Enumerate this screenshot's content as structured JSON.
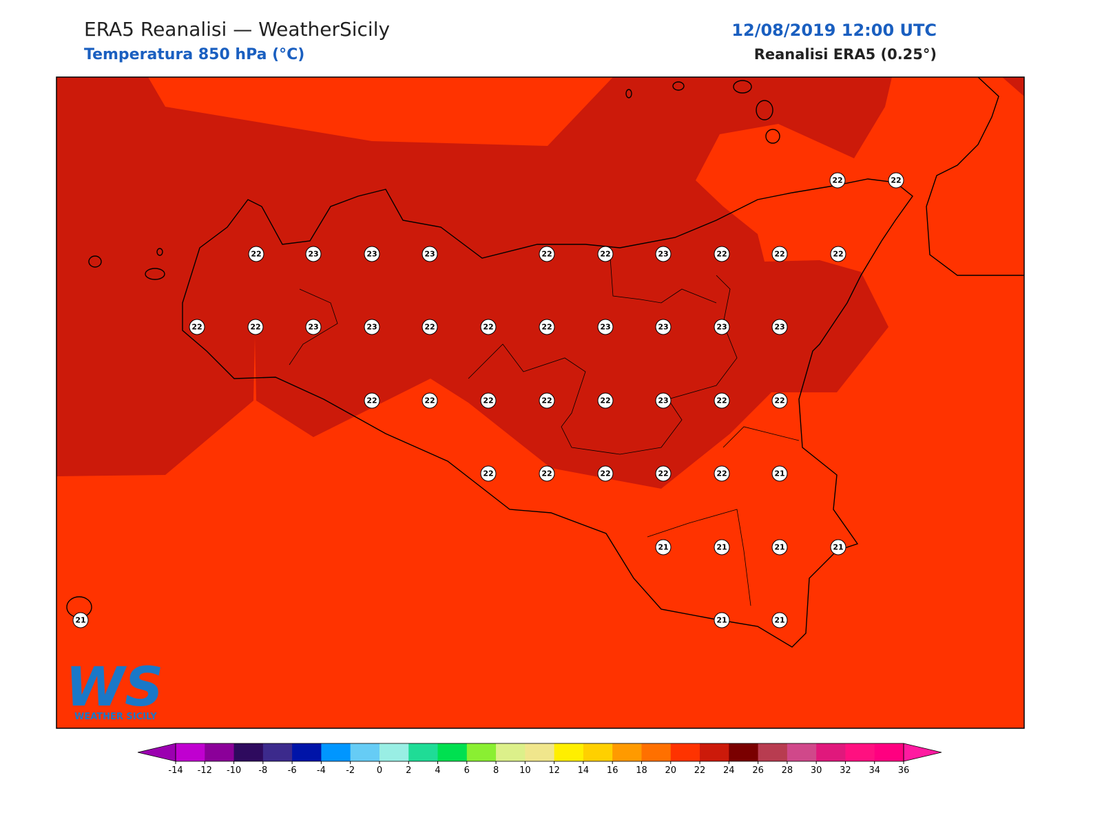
{
  "header": {
    "title": "ERA5 Reanalisi — WeatherSicily",
    "subtitle": "Temperatura 850 hPa (°C)",
    "datetime": "12/08/2019 12:00 UTC",
    "source": "Reanalisi ERA5 (0.25°)"
  },
  "stations": [
    22,
    22,
    22,
    23,
    23,
    23,
    22,
    22,
    23,
    22,
    22,
    22,
    22,
    22,
    23,
    23,
    22,
    22,
    22,
    23,
    23,
    23,
    23,
    22,
    22,
    22,
    22,
    22,
    23,
    22,
    22,
    22,
    22,
    22,
    22,
    22,
    21,
    21,
    21,
    21,
    21,
    21,
    21,
    21
  ],
  "colorbar": {
    "ticks": [
      -14,
      -12,
      -10,
      -8,
      -6,
      -4,
      -2,
      0,
      2,
      4,
      6,
      8,
      10,
      12,
      14,
      16,
      18,
      20,
      22,
      24,
      26,
      28,
      30,
      32,
      34,
      36
    ],
    "colors": [
      "#c000d0",
      "#8b0099",
      "#2e0a5e",
      "#3c2a8c",
      "#0014a8",
      "#0096ff",
      "#66ccf5",
      "#99eee4",
      "#1fdc96",
      "#00e050",
      "#8aef32",
      "#dcf08a",
      "#f0e68c",
      "#ffef00",
      "#ffd000",
      "#ff9a00",
      "#ff7000",
      "#ff3300",
      "#cc1a0a",
      "#7a0000",
      "#b83c50",
      "#d0488a",
      "#e0187c",
      "#ff1080",
      "#ff0080"
    ],
    "under_color": "#9b00b0",
    "over_color": "#ff1aa0"
  },
  "logo": {
    "mark": "WS",
    "name": "WEATHER SICILY"
  }
}
